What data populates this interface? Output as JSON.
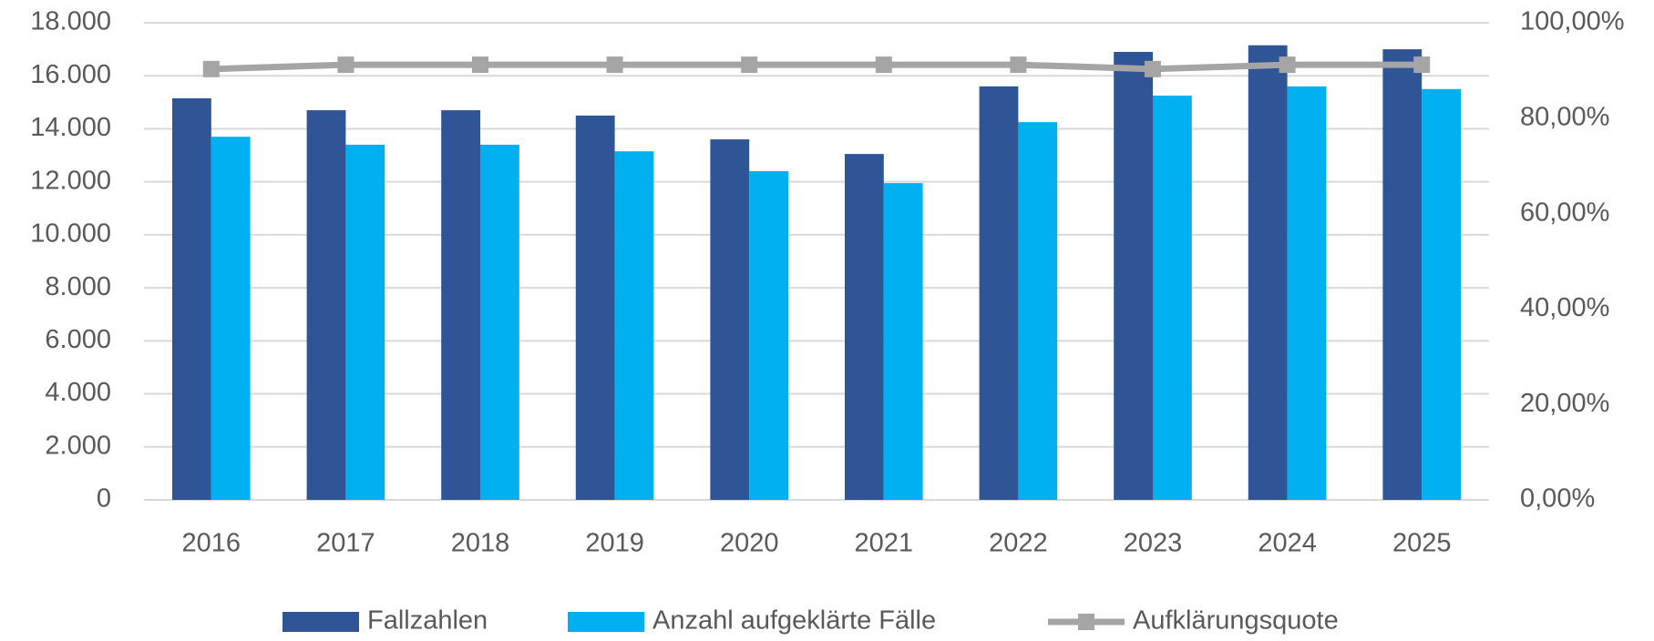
{
  "chart_data": {
    "type": "bar",
    "categories": [
      "2016",
      "2017",
      "2018",
      "2019",
      "2020",
      "2021",
      "2022",
      "2023",
      "2024",
      "2025"
    ],
    "series": [
      {
        "name": "Fallzahlen",
        "color": "#2f5597",
        "type": "bar",
        "values": [
          15150,
          14700,
          14700,
          14500,
          13600,
          13050,
          15600,
          16900,
          17150,
          17000
        ]
      },
      {
        "name": "Anzahl aufgeklärte Fälle",
        "color": "#00b0f0",
        "type": "bar",
        "values": [
          13700,
          13400,
          13400,
          13150,
          12400,
          11950,
          14250,
          15250,
          15600,
          15500
        ]
      },
      {
        "name": "Aufklärungsquote",
        "color": "#a5a5a5",
        "type": "line",
        "axis": "y2",
        "values": [
          90.3,
          91.2,
          91.2,
          91.2,
          91.2,
          91.2,
          91.2,
          90.3,
          91.2,
          91.2
        ]
      }
    ],
    "ylim": [
      0,
      18000
    ],
    "yticks": [
      0,
      {
        "value": 2000,
        "label": "2.000"
      },
      {
        "value": 4000,
        "label": "4.000"
      },
      {
        "value": 6000,
        "label": "6.000"
      },
      {
        "value": 8000,
        "label": "8.000"
      },
      {
        "value": 10000,
        "label": "10.000"
      },
      {
        "value": 12000,
        "label": "12.000"
      },
      {
        "value": 14000,
        "label": "14.000"
      },
      {
        "value": 16000,
        "label": "16.000"
      },
      {
        "value": 18000,
        "label": "18.000"
      }
    ],
    "y2lim": [
      0,
      100
    ],
    "y2ticks": [
      {
        "value": 0,
        "label": "0,00%"
      },
      {
        "value": 20,
        "label": "20,00%"
      },
      {
        "value": 40,
        "label": "40,00%"
      },
      {
        "value": 60,
        "label": "60,00%"
      },
      {
        "value": 80,
        "label": "80,00%"
      },
      {
        "value": 100,
        "label": "100,00%"
      }
    ],
    "grid": true,
    "legend": "bottom"
  }
}
